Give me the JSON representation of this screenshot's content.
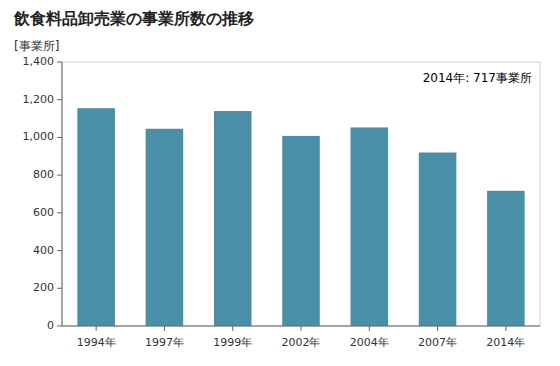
{
  "chart_data": {
    "type": "bar",
    "title": "飲食料品卸売業の事業所数の推移",
    "ylabel": "[事業所]",
    "annotation": "2014年: 717事業所",
    "categories": [
      "1994年",
      "1997年",
      "1999年",
      "2002年",
      "2004年",
      "2007年",
      "2014年"
    ],
    "values": [
      1155,
      1046,
      1140,
      1008,
      1053,
      920,
      717
    ],
    "color": "#4a8fa8",
    "ylim": [
      0,
      1400
    ],
    "yticks": [
      0,
      200,
      400,
      600,
      800,
      {
        "value": 1000,
        "label": "1,000"
      },
      {
        "value": 1200,
        "label": "1,200"
      },
      {
        "value": 1400,
        "label": "1,400"
      }
    ],
    "grid": false
  }
}
